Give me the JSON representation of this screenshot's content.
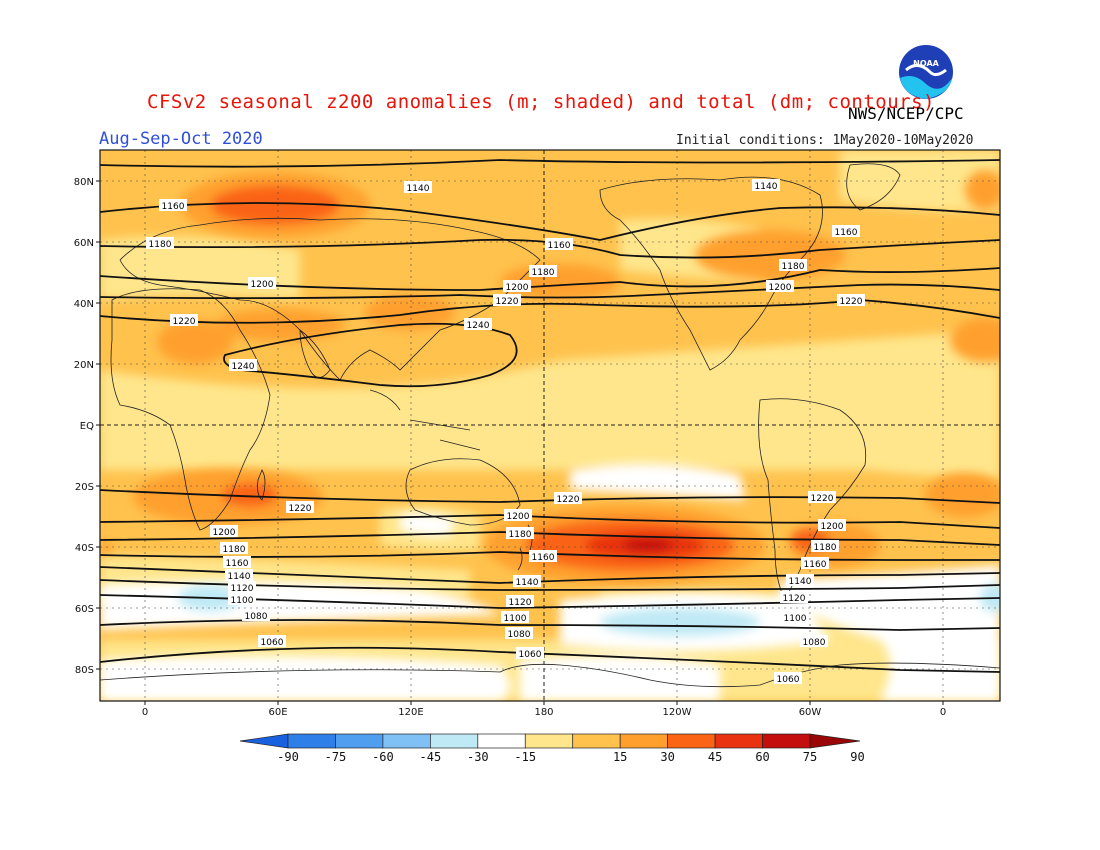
{
  "title": "CFSv2 seasonal z200 anomalies (m; shaded) and total (dm; contours)",
  "season": "Aug-Sep-Oct 2020",
  "agency": "NWS/NCEP/CPC",
  "initial_conditions": "Initial conditions: 1May2020-10May2020",
  "logo": {
    "icon": "noaa-logo-icon",
    "text": "NOAA",
    "colors": [
      "#1e3fb5",
      "#22c3ee",
      "#ffffff"
    ]
  },
  "lat_labels": [
    "80N",
    "60N",
    "40N",
    "20N",
    "EQ",
    "20S",
    "40S",
    "60S",
    "80S"
  ],
  "lon_labels": [
    "0",
    "60E",
    "120E",
    "180",
    "120W",
    "60W",
    "0"
  ],
  "colorbar": {
    "ticks": [
      "-90",
      "-75",
      "-60",
      "-45",
      "-30",
      "-15",
      "15",
      "30",
      "45",
      "60",
      "75",
      "90"
    ],
    "colors": [
      "#1860dd",
      "#2f7fe8",
      "#4f9ef0",
      "#7fc0f5",
      "#bfe9f5",
      "#ffffff",
      "#ffe68c",
      "#ffc24d",
      "#ffa02e",
      "#fa6414",
      "#e83210",
      "#c40d0d",
      "#9a0505"
    ]
  },
  "contours": [
    {
      "label": "1140",
      "lat": 82
    },
    {
      "label": "1160",
      "lat": 70
    },
    {
      "label": "1180",
      "lat": 60
    },
    {
      "label": "1200",
      "lat": 46
    },
    {
      "label": "1220",
      "lat": 36
    },
    {
      "label": "1240",
      "lat": 24
    },
    {
      "label": "1220",
      "lat": -25
    },
    {
      "label": "1200",
      "lat": -33
    },
    {
      "label": "1180",
      "lat": -38
    },
    {
      "label": "1160",
      "lat": -43
    },
    {
      "label": "1140",
      "lat": -47
    },
    {
      "label": "1120",
      "lat": -51
    },
    {
      "label": "1100",
      "lat": -56
    },
    {
      "label": "1080",
      "lat": -62
    },
    {
      "label": "1060",
      "lat": -70
    }
  ]
}
